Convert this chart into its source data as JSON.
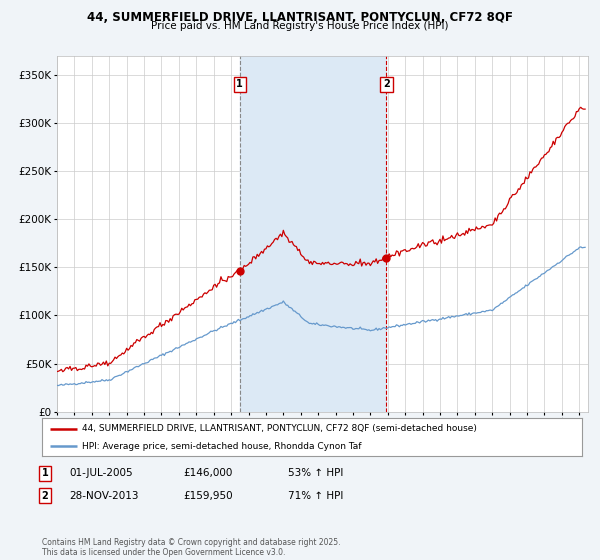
{
  "title": "44, SUMMERFIELD DRIVE, LLANTRISANT, PONTYCLUN, CF72 8QF",
  "subtitle": "Price paid vs. HM Land Registry's House Price Index (HPI)",
  "ytick_vals": [
    0,
    50000,
    100000,
    150000,
    200000,
    250000,
    300000,
    350000
  ],
  "ytick_labels": [
    "£0",
    "£50K",
    "£100K",
    "£150K",
    "£200K",
    "£250K",
    "£300K",
    "£350K"
  ],
  "ylim": [
    0,
    370000
  ],
  "xlim_start": 1995.0,
  "xlim_end": 2025.5,
  "legend_line1": "44, SUMMERFIELD DRIVE, LLANTRISANT, PONTYCLUN, CF72 8QF (semi-detached house)",
  "legend_line2": "HPI: Average price, semi-detached house, Rhondda Cynon Taf",
  "sale1_label": "1",
  "sale1_date": "01-JUL-2005",
  "sale1_price": "£146,000",
  "sale1_hpi": "53% ↑ HPI",
  "sale1_x": 2005.5,
  "sale1_y": 146000,
  "sale2_label": "2",
  "sale2_date": "28-NOV-2013",
  "sale2_price": "£159,950",
  "sale2_hpi": "71% ↑ HPI",
  "sale2_x": 2013.92,
  "sale2_y": 159950,
  "footer": "Contains HM Land Registry data © Crown copyright and database right 2025.\nThis data is licensed under the Open Government Licence v3.0.",
  "line_color_red": "#cc0000",
  "line_color_blue": "#6699cc",
  "vline1_color": "#888888",
  "vline2_color": "#cc0000",
  "shade_color": "#dce9f5",
  "bg_color": "#f0f4f8",
  "plot_bg": "#ffffff",
  "grid_color": "#cccccc"
}
